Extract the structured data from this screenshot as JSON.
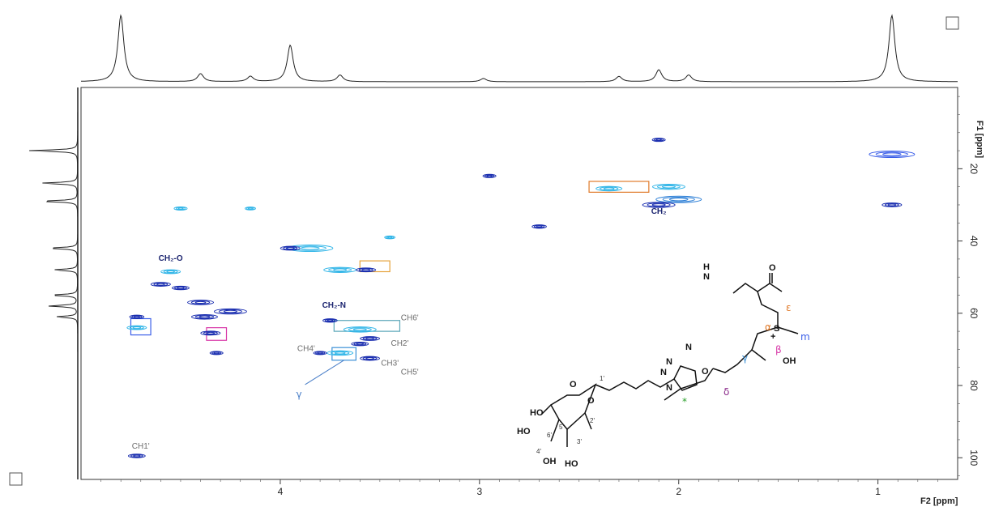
{
  "chart_data": {
    "type": "heatmap",
    "subtype": "2D NMR spectrum (HSQC) with projections",
    "xlabel": "F2 [ppm]",
    "ylabel": "F1 [ppm]",
    "x_reversed": true,
    "y_reversed": true,
    "xlim": [
      5.0,
      0.6
    ],
    "ylim": [
      -2.5,
      106
    ],
    "x_ticks": [
      4,
      3,
      2,
      1
    ],
    "x_tick_labels": [
      "4",
      "3",
      "2",
      "1"
    ],
    "y_ticks": [
      20,
      40,
      60,
      80,
      100
    ],
    "y_tick_labels": [
      "20",
      "40",
      "60",
      "80",
      "100"
    ],
    "grid": false,
    "top_projection_peaks": [
      {
        "x": 4.8,
        "height": 1.0
      },
      {
        "x": 4.4,
        "height": 0.12
      },
      {
        "x": 4.15,
        "height": 0.08
      },
      {
        "x": 3.95,
        "height": 0.55
      },
      {
        "x": 3.7,
        "height": 0.1
      },
      {
        "x": 2.1,
        "height": 0.18
      },
      {
        "x": 1.95,
        "height": 0.1
      },
      {
        "x": 2.3,
        "height": 0.08
      },
      {
        "x": 0.93,
        "height": 1.0
      },
      {
        "x": 2.98,
        "height": 0.05
      }
    ],
    "left_projection_peaks": [
      {
        "y": 15,
        "height": 1.0
      },
      {
        "y": 24,
        "height": 0.75
      },
      {
        "y": 29,
        "height": 0.75
      },
      {
        "y": 42,
        "height": 0.6
      },
      {
        "y": 48,
        "height": 0.5
      },
      {
        "y": 55,
        "height": 0.55
      },
      {
        "y": 58,
        "height": 0.6
      },
      {
        "y": 61,
        "height": 0.45
      }
    ],
    "cross_peaks": [
      {
        "x": 0.93,
        "y": 16,
        "color": "#3a5ee8",
        "size": 3
      },
      {
        "x": 0.93,
        "y": 30,
        "color": "#1b2fb0",
        "size": 1
      },
      {
        "x": 2.1,
        "y": 12,
        "color": "#1b2fb0",
        "size": 0.5
      },
      {
        "x": 2.05,
        "y": 25,
        "color": "#33b6e8",
        "size": 2
      },
      {
        "x": 2.0,
        "y": 28.5,
        "color": "#2d7fd6",
        "size": 3
      },
      {
        "x": 2.1,
        "y": 30,
        "color": "#1b2fb0",
        "size": 2
      },
      {
        "x": 2.35,
        "y": 25.5,
        "color": "#33b6e8",
        "size": 1.5
      },
      {
        "x": 2.95,
        "y": 22,
        "color": "#1b2fb0",
        "size": 0.5
      },
      {
        "x": 2.7,
        "y": 36,
        "color": "#1b2fb0",
        "size": 0.6
      },
      {
        "x": 3.85,
        "y": 42,
        "color": "#33b6e8",
        "size": 3
      },
      {
        "x": 3.95,
        "y": 42,
        "color": "#1b2fb0",
        "size": 1
      },
      {
        "x": 3.7,
        "y": 48,
        "color": "#33b6e8",
        "size": 2
      },
      {
        "x": 3.57,
        "y": 48,
        "color": "#1b2fb0",
        "size": 1
      },
      {
        "x": 4.55,
        "y": 48.5,
        "color": "#33b6e8",
        "size": 1
      },
      {
        "x": 4.6,
        "y": 52,
        "color": "#1b2fb0",
        "size": 1
      },
      {
        "x": 4.5,
        "y": 53,
        "color": "#1b2fb0",
        "size": 0.8
      },
      {
        "x": 4.4,
        "y": 57,
        "color": "#1b2fb0",
        "size": 1.5
      },
      {
        "x": 4.25,
        "y": 59.5,
        "color": "#1b2fb0",
        "size": 2
      },
      {
        "x": 4.38,
        "y": 61,
        "color": "#1b2fb0",
        "size": 1.5
      },
      {
        "x": 4.35,
        "y": 65.5,
        "color": "#1b2fb0",
        "size": 1
      },
      {
        "x": 4.32,
        "y": 71,
        "color": "#1b2fb0",
        "size": 0.5
      },
      {
        "x": 4.72,
        "y": 61,
        "color": "#1b2fb0",
        "size": 0.6
      },
      {
        "x": 4.72,
        "y": 64,
        "color": "#33b6e8",
        "size": 1
      },
      {
        "x": 3.75,
        "y": 62,
        "color": "#1b2fb0",
        "size": 0.6
      },
      {
        "x": 3.6,
        "y": 64.5,
        "color": "#33b6e8",
        "size": 2
      },
      {
        "x": 3.55,
        "y": 67,
        "color": "#1b2fb0",
        "size": 1
      },
      {
        "x": 3.6,
        "y": 68.5,
        "color": "#1b2fb0",
        "size": 0.8
      },
      {
        "x": 3.7,
        "y": 71,
        "color": "#33b6e8",
        "size": 1.5
      },
      {
        "x": 3.55,
        "y": 72.5,
        "color": "#1b2fb0",
        "size": 1
      },
      {
        "x": 3.8,
        "y": 71,
        "color": "#1b2fb0",
        "size": 0.5
      },
      {
        "x": 4.72,
        "y": 99.5,
        "color": "#1b2fb0",
        "size": 0.8
      },
      {
        "x": 4.5,
        "y": 31,
        "color": "#33b6e8",
        "size": 0.5
      },
      {
        "x": 4.15,
        "y": 31,
        "color": "#33b6e8",
        "size": 0.3
      },
      {
        "x": 3.45,
        "y": 39,
        "color": "#33b6e8",
        "size": 0.3
      }
    ],
    "peak_labels": [
      {
        "text": "CH₂-O",
        "x": 4.55,
        "y": 45.5,
        "style": "dark"
      },
      {
        "text": "CH₂-N",
        "x": 3.73,
        "y": 58.5,
        "style": "dark"
      },
      {
        "text": "CH₂",
        "x": 2.1,
        "y": 32.5,
        "style": "dark"
      },
      {
        "text": "CH6'",
        "x": 3.35,
        "y": 62,
        "style": "gray"
      },
      {
        "text": "CH2'",
        "x": 3.4,
        "y": 69,
        "style": "gray"
      },
      {
        "text": "CH4'",
        "x": 3.87,
        "y": 70.5,
        "style": "gray"
      },
      {
        "text": "CH3'",
        "x": 3.45,
        "y": 74.5,
        "style": "gray"
      },
      {
        "text": "CH5'",
        "x": 3.35,
        "y": 77,
        "style": "gray"
      },
      {
        "text": "CH1'",
        "x": 4.7,
        "y": 97.5,
        "style": "gray"
      }
    ],
    "highlight_boxes": [
      {
        "x0": 2.45,
        "x1": 2.15,
        "y0": 23.5,
        "y1": 26.5,
        "color": "#e07a2a"
      },
      {
        "x0": 3.6,
        "x1": 3.45,
        "y0": 45.5,
        "y1": 48.5,
        "color": "#e6a23a"
      },
      {
        "x0": 4.75,
        "x1": 4.65,
        "y0": 61.5,
        "y1": 66,
        "color": "#3a5ee8"
      },
      {
        "x0": 4.37,
        "x1": 4.27,
        "y0": 64,
        "y1": 67.5,
        "color": "#d838a8"
      },
      {
        "x0": 3.73,
        "x1": 3.4,
        "y0": 62,
        "y1": 65,
        "color": "#5aa6b8"
      },
      {
        "x0": 3.74,
        "x1": 3.62,
        "y0": 69.5,
        "y1": 73,
        "color": "#3a8fd6"
      }
    ],
    "gamma_annotation": {
      "text": "γ",
      "x": 3.9,
      "y": 82,
      "arrow_to_x": 3.68,
      "arrow_to_y": 73
    }
  },
  "structure": {
    "atom_labels": [
      "H",
      "N",
      "O",
      "S",
      "+",
      "OH",
      "O",
      "N",
      "N",
      "N",
      "N",
      "O",
      "O",
      "HO",
      "HO",
      "OH",
      "HO"
    ],
    "carbon_labels": [
      "1'",
      "2'",
      "3'",
      "4'",
      "5'",
      "6'"
    ],
    "greek_labels": [
      {
        "text": "ε",
        "color": "#e07a2a"
      },
      {
        "text": "α",
        "color": "#e07a2a"
      },
      {
        "text": "m",
        "color": "#3a5ee8"
      },
      {
        "text": "β",
        "color": "#d838a8"
      },
      {
        "text": "γ",
        "color": "#3a8fd6"
      },
      {
        "text": "δ",
        "color": "#8a2a8a"
      },
      {
        "text": "*",
        "color": "#2aa02a"
      }
    ]
  },
  "checkboxes": [
    {
      "label": ""
    },
    {
      "label": ""
    }
  ]
}
